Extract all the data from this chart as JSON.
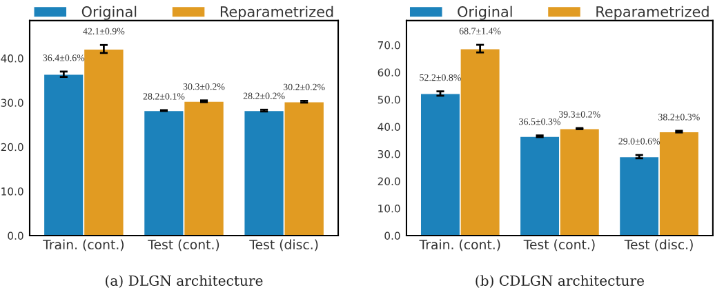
{
  "chart_data": [
    {
      "type": "bar",
      "categories": [
        "Train. (cont.)",
        "Test (cont.)",
        "Test (disc.)"
      ],
      "series": [
        {
          "name": "Original",
          "color": "#1c82bb",
          "values": [
            36.4,
            28.2,
            28.2
          ],
          "errors": [
            0.6,
            0.1,
            0.2
          ],
          "value_labels": [
            "36.4±0.6%",
            "28.2±0.1%",
            "28.2±0.2%"
          ]
        },
        {
          "name": "Reparametrized",
          "color": "#e19b22",
          "values": [
            42.1,
            30.3,
            30.2
          ],
          "errors": [
            0.9,
            0.2,
            0.2
          ],
          "value_labels": [
            "42.1±0.9%",
            "30.3±0.2%",
            "30.2±0.2%"
          ]
        }
      ],
      "ylim": [
        0,
        48.5
      ],
      "yticks": [
        {
          "value": 0,
          "label": "0.0"
        },
        {
          "value": 10,
          "label": "10.0"
        },
        {
          "value": 20,
          "label": "20.0"
        },
        {
          "value": 30,
          "label": "30.0"
        },
        {
          "value": 40,
          "label": "40.0"
        }
      ],
      "legend": "top",
      "annotations": [
        "(a) DLGN architecture"
      ]
    },
    {
      "type": "bar",
      "categories": [
        "Train. (cont.)",
        "Test (cont.)",
        "Test (disc.)"
      ],
      "series": [
        {
          "name": "Original",
          "color": "#1c82bb",
          "values": [
            52.2,
            36.5,
            29.0
          ],
          "errors": [
            0.8,
            0.3,
            0.6
          ],
          "value_labels": [
            "52.2±0.8%",
            "36.5±0.3%",
            "29.0±0.6%"
          ]
        },
        {
          "name": "Reparametrized",
          "color": "#e19b22",
          "values": [
            68.7,
            39.3,
            38.2
          ],
          "errors": [
            1.4,
            0.2,
            0.3
          ],
          "value_labels": [
            "68.7±1.4%",
            "39.3±0.2%",
            "38.2±0.3%"
          ]
        }
      ],
      "ylim": [
        0,
        79
      ],
      "yticks": [
        {
          "value": 0,
          "label": "0.0"
        },
        {
          "value": 10,
          "label": "10.0"
        },
        {
          "value": 20,
          "label": "20.0"
        },
        {
          "value": 30,
          "label": "30.0"
        },
        {
          "value": 40,
          "label": "40.0"
        },
        {
          "value": 50,
          "label": "50.0"
        },
        {
          "value": 60,
          "label": "60.0"
        },
        {
          "value": 70,
          "label": "70.0"
        }
      ],
      "legend": "top",
      "annotations": [
        "(b) CDLGN architecture"
      ]
    }
  ]
}
